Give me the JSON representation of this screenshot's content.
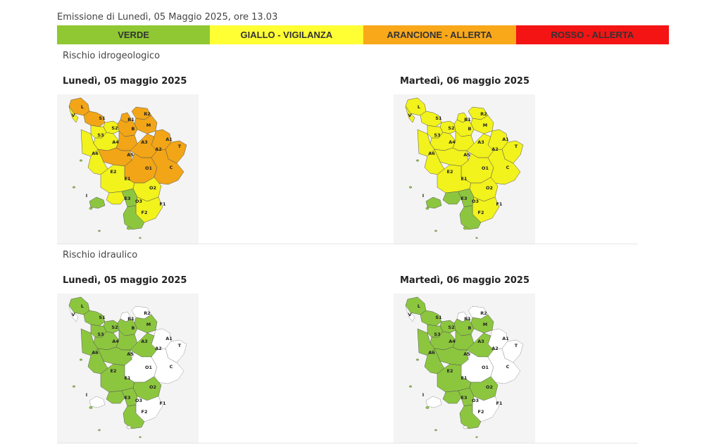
{
  "header": {
    "emission": "Emissione di Lunedì, 05 Maggio 2025, ore 13.03"
  },
  "legend": [
    {
      "label": "VERDE",
      "color": "#8fc832"
    },
    {
      "label": "GIALLO - VIGILANZA",
      "color": "#ffff33"
    },
    {
      "label": "ARANCIONE - ALLERTA",
      "color": "#f9a81a"
    },
    {
      "label": "ROSSO - ALLERTA",
      "color": "#f41414"
    }
  ],
  "colors": {
    "verde": "#8cc63f",
    "giallo": "#f2f21c",
    "arancione": "#f2a516",
    "nessuno": "#ffffff",
    "background": "#f4f4f4"
  },
  "zone_labels": [
    "L",
    "V",
    "S1",
    "R1",
    "R2",
    "M",
    "B",
    "S2",
    "S3",
    "A4",
    "A3",
    "A1",
    "A2",
    "T",
    "A6",
    "A5",
    "O1",
    "C",
    "E2",
    "E1",
    "O2",
    "I",
    "E3",
    "O3",
    "F1",
    "F2"
  ],
  "sections": [
    {
      "title": "Rischio idrogeologico",
      "maps": [
        {
          "day": "Lunedì, 05 maggio 2025",
          "zones": {
            "L": "arancione",
            "V": "giallo",
            "S1": "arancione",
            "R1": "arancione",
            "R2": "arancione",
            "M": "arancione",
            "B": "arancione",
            "S2": "giallo",
            "S3": "giallo",
            "A4": "giallo",
            "A3": "arancione",
            "A1": "arancione",
            "A2": "arancione",
            "T": "arancione",
            "A6": "giallo",
            "A5": "arancione",
            "O1": "arancione",
            "C": "arancione",
            "E2": "giallo",
            "E1": "giallo",
            "O2": "giallo",
            "I": "verde",
            "E3": "giallo",
            "O3": "verde",
            "F1": "giallo",
            "F2": "verde"
          }
        },
        {
          "day": "Martedì, 06 maggio 2025",
          "zones": {
            "L": "giallo",
            "V": "giallo",
            "S1": "giallo",
            "R1": "giallo",
            "R2": "giallo",
            "M": "giallo",
            "B": "giallo",
            "S2": "giallo",
            "S3": "giallo",
            "A4": "giallo",
            "A3": "giallo",
            "A1": "giallo",
            "A2": "giallo",
            "T": "giallo",
            "A6": "giallo",
            "A5": "giallo",
            "O1": "giallo",
            "C": "giallo",
            "E2": "giallo",
            "E1": "giallo",
            "O2": "giallo",
            "I": "verde",
            "E3": "verde",
            "O3": "verde",
            "F1": "giallo",
            "F2": "verde"
          }
        }
      ]
    },
    {
      "title": "Rischio idraulico",
      "maps": [
        {
          "day": "Lunedì, 05 maggio 2025",
          "zones": {
            "L": "verde",
            "V": "nessuno",
            "S1": "verde",
            "R1": "nessuno",
            "R2": "nessuno",
            "M": "verde",
            "B": "verde",
            "S2": "verde",
            "S3": "verde",
            "A4": "verde",
            "A3": "verde",
            "A1": "nessuno",
            "A2": "verde",
            "T": "nessuno",
            "A6": "verde",
            "A5": "verde",
            "O1": "nessuno",
            "C": "nessuno",
            "E2": "verde",
            "E1": "verde",
            "O2": "verde",
            "I": "nessuno",
            "E3": "verde",
            "O3": "verde",
            "F1": "nessuno",
            "F2": "verde"
          }
        },
        {
          "day": "Martedì, 06 maggio 2025",
          "zones": {
            "L": "verde",
            "V": "nessuno",
            "S1": "verde",
            "R1": "nessuno",
            "R2": "nessuno",
            "M": "verde",
            "B": "verde",
            "S2": "verde",
            "S3": "verde",
            "A4": "verde",
            "A3": "verde",
            "A1": "nessuno",
            "A2": "verde",
            "T": "nessuno",
            "A6": "verde",
            "A5": "verde",
            "O1": "nessuno",
            "C": "nessuno",
            "E2": "verde",
            "E1": "verde",
            "O2": "verde",
            "I": "nessuno",
            "E3": "verde",
            "O3": "verde",
            "F1": "nessuno",
            "F2": "verde"
          }
        }
      ]
    }
  ]
}
